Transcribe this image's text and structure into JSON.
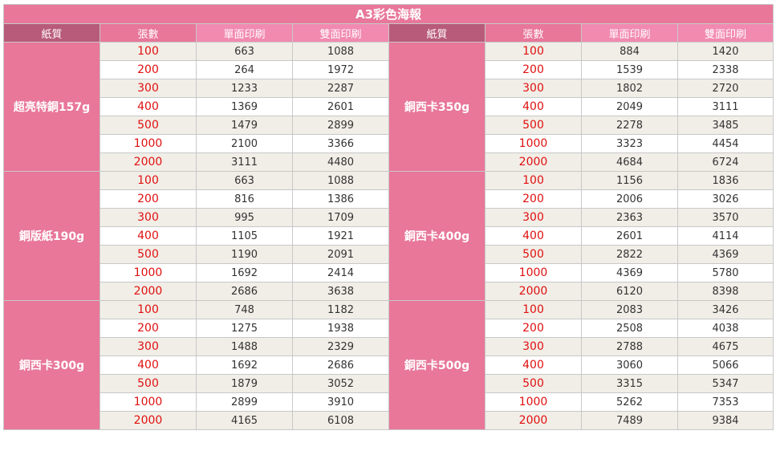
{
  "title": "A3彩色海報",
  "headers": [
    "紙質",
    "張數",
    "單面印刷",
    "雙面印刷",
    "紙質",
    "張數",
    "單面印刷",
    "雙面印刷"
  ],
  "quantities": [
    "100",
    "200",
    "300",
    "400",
    "500",
    "1000",
    "2000"
  ],
  "colors": {
    "title_bg": "#e8779a",
    "paper_header_bg": "#b85a7a",
    "price_header_bg": "#f28ab0",
    "qty_text": "#e01010",
    "stripe_bg": "#f1eee7"
  },
  "blocks": [
    {
      "left": {
        "paper": "超亮特銅157g",
        "single": [
          "663",
          "264",
          "1233",
          "1369",
          "1479",
          "2100",
          "3111"
        ],
        "double": [
          "1088",
          "1972",
          "2287",
          "2601",
          "2899",
          "3366",
          "4480"
        ]
      },
      "right": {
        "paper": "銅西卡350g",
        "single": [
          "884",
          "1539",
          "1802",
          "2049",
          "2278",
          "3323",
          "4684"
        ],
        "double": [
          "1420",
          "2338",
          "2720",
          "3111",
          "3485",
          "4454",
          "6724"
        ]
      }
    },
    {
      "left": {
        "paper": "銅版紙190g",
        "single": [
          "663",
          "816",
          "995",
          "1105",
          "1190",
          "1692",
          "2686"
        ],
        "double": [
          "1088",
          "1386",
          "1709",
          "1921",
          "2091",
          "2414",
          "3638"
        ]
      },
      "right": {
        "paper": "銅西卡400g",
        "single": [
          "1156",
          "2006",
          "2363",
          "2601",
          "2822",
          "4369",
          "6120"
        ],
        "double": [
          "1836",
          "3026",
          "3570",
          "4114",
          "4369",
          "5780",
          "8398"
        ]
      }
    },
    {
      "left": {
        "paper": "銅西卡300g",
        "single": [
          "748",
          "1275",
          "1488",
          "1692",
          "1879",
          "2899",
          "4165"
        ],
        "double": [
          "1182",
          "1938",
          "2329",
          "2686",
          "3052",
          "3910",
          "6108"
        ]
      },
      "right": {
        "paper": "銅西卡500g",
        "single": [
          "2083",
          "2508",
          "2788",
          "3060",
          "3315",
          "5262",
          "7489"
        ],
        "double": [
          "3426",
          "4038",
          "4675",
          "5066",
          "5347",
          "7353",
          "9384"
        ]
      }
    }
  ]
}
